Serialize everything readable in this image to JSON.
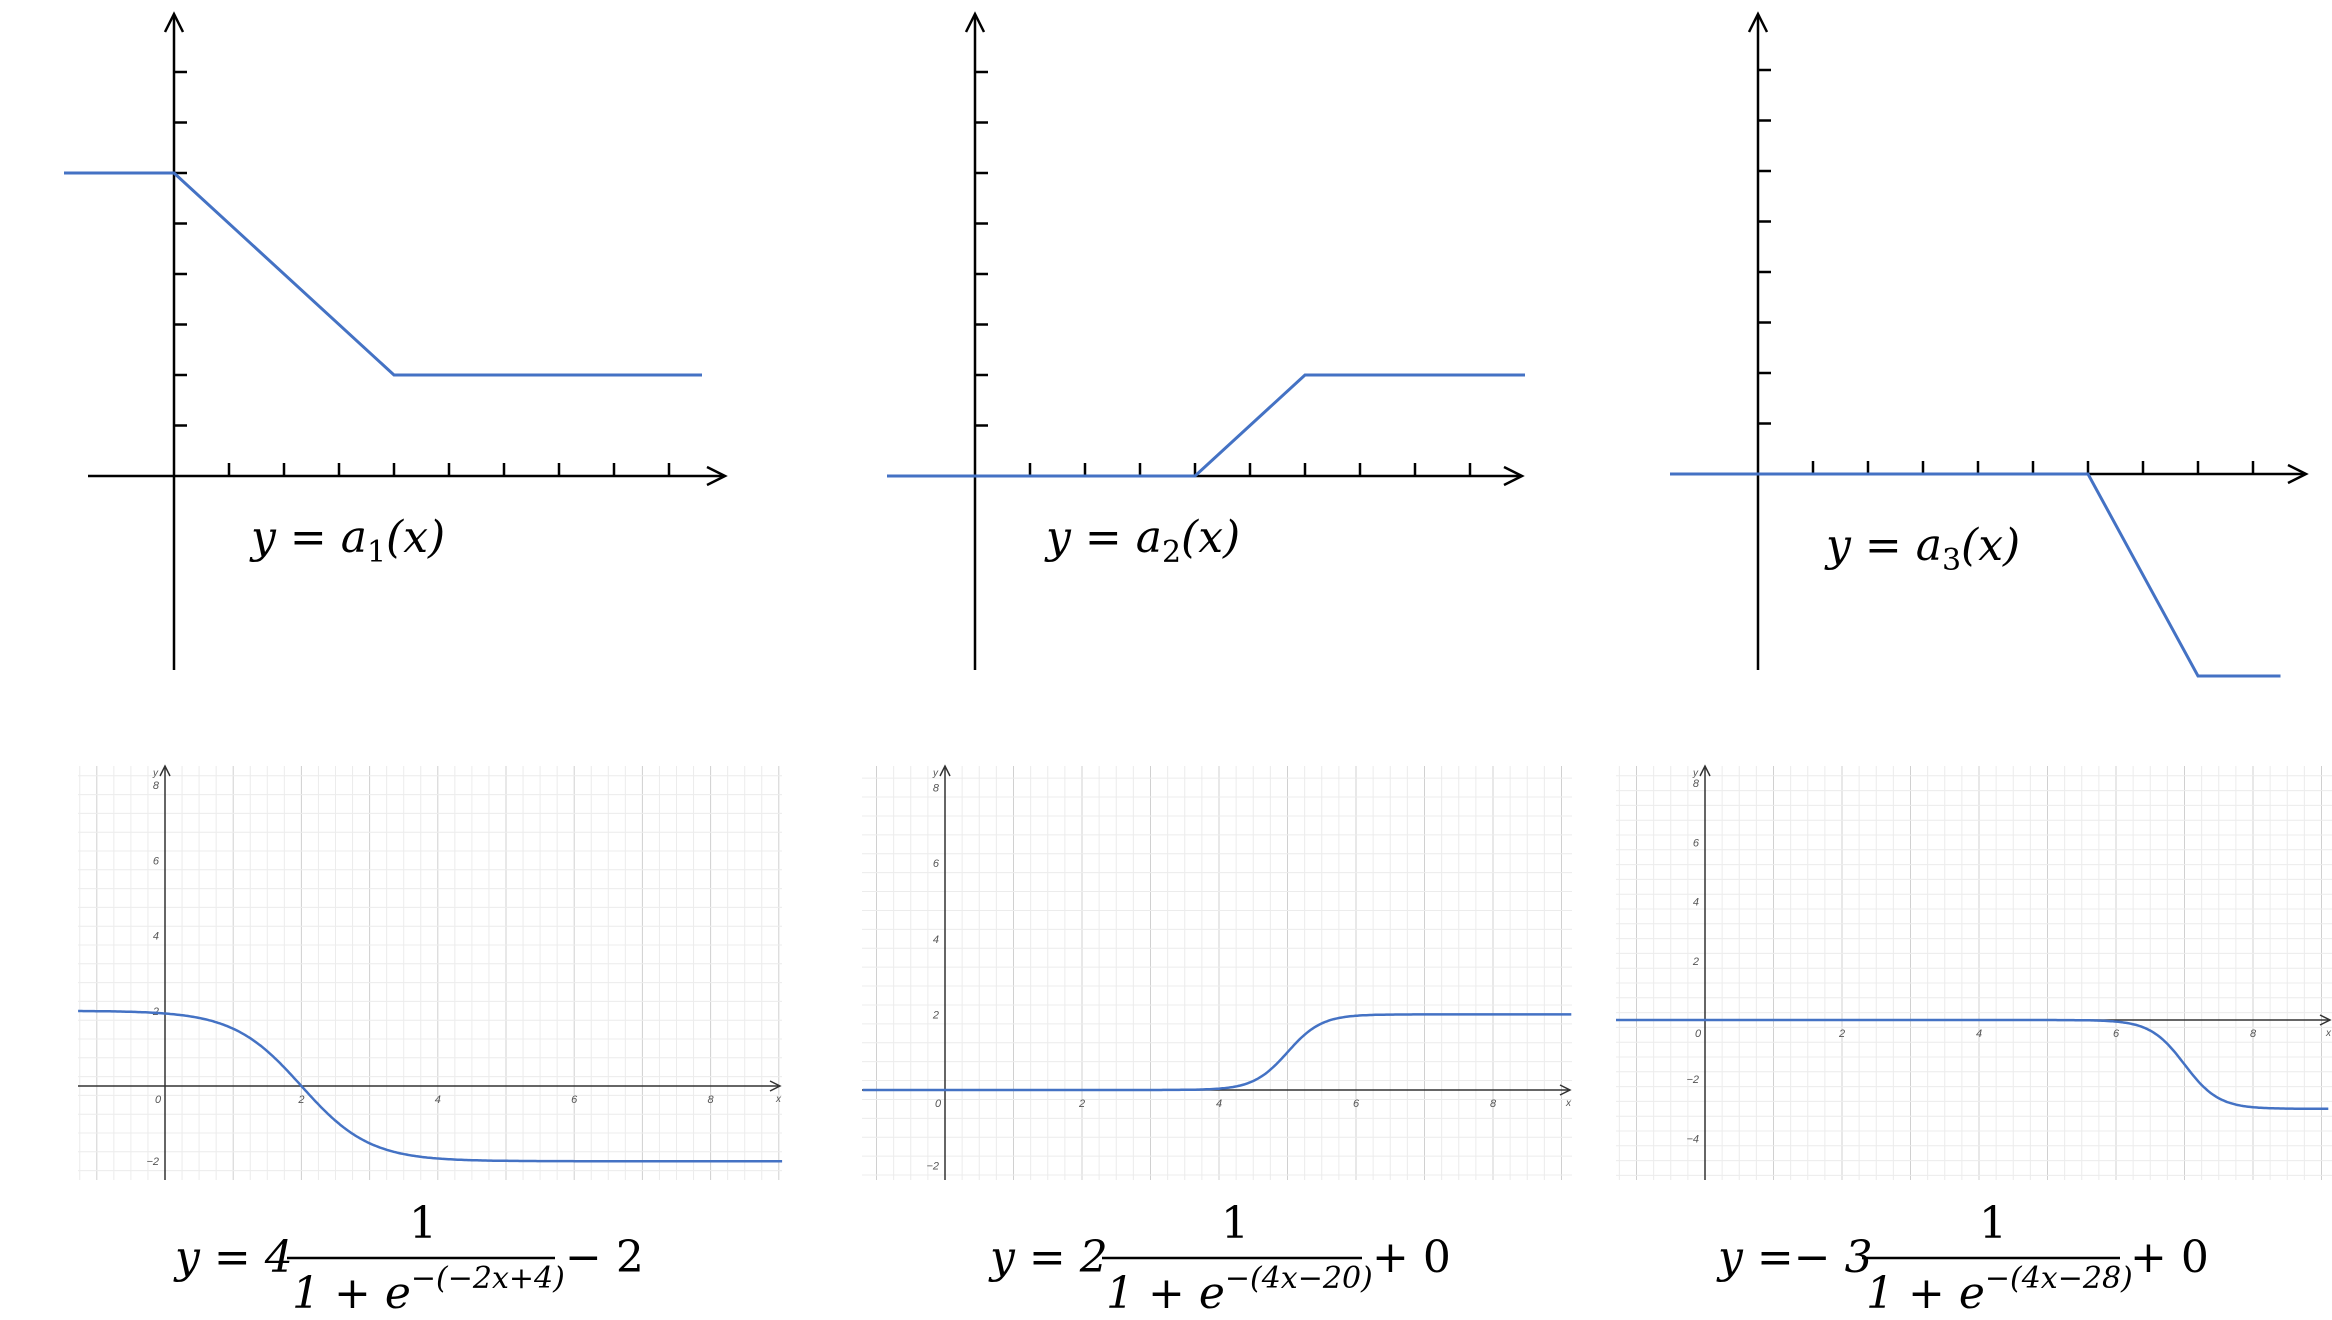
{
  "colors": {
    "curve": "#4472C4",
    "axis": "#000000",
    "grid_major": "#d0d0d0",
    "grid_minor": "#ececec",
    "tick_label": "#555555"
  },
  "chart_data": [
    {
      "type": "line",
      "title": "",
      "xlabel": "",
      "ylabel": "",
      "caption": {
        "lhs": "y = ",
        "a": "a",
        "sub": "1",
        "rhs": "(x)"
      },
      "xlim": [
        -1.6,
        10
      ],
      "ylim": [
        -1.4,
        9
      ],
      "x_ticks": [
        1,
        2,
        3,
        4,
        5,
        6,
        7,
        8,
        9
      ],
      "y_ticks": [
        1,
        2,
        3,
        4,
        5,
        6,
        7,
        8
      ],
      "series": [
        {
          "x": [
            -2,
            0,
            4,
            9.6
          ],
          "y": [
            6,
            6,
            2,
            2
          ]
        }
      ]
    },
    {
      "type": "line",
      "title": "",
      "xlabel": "",
      "ylabel": "",
      "caption": {
        "lhs": "y = ",
        "a": "a",
        "sub": "2",
        "rhs": "(x)"
      },
      "xlim": [
        -1.6,
        10
      ],
      "ylim": [
        -1.4,
        9
      ],
      "x_ticks": [
        1,
        2,
        3,
        4,
        5,
        6,
        7,
        8,
        9
      ],
      "y_ticks": [
        1,
        2,
        3,
        4,
        5,
        6,
        7,
        8
      ],
      "series": [
        {
          "x": [
            -1.6,
            4,
            6,
            10
          ],
          "y": [
            0,
            0,
            2,
            2
          ]
        }
      ]
    },
    {
      "type": "line",
      "title": "",
      "xlabel": "",
      "ylabel": "",
      "caption": {
        "lhs": "y = ",
        "a": "a",
        "sub": "3",
        "rhs": "(x)"
      },
      "xlim": [
        -1.6,
        10
      ],
      "ylim": [
        -4.2,
        9
      ],
      "x_ticks": [
        1,
        2,
        3,
        4,
        5,
        6,
        7,
        8,
        9
      ],
      "y_ticks": [
        1,
        2,
        3,
        4,
        5,
        6,
        7,
        8
      ],
      "series": [
        {
          "x": [
            -1.6,
            6,
            8,
            9.5
          ],
          "y": [
            0,
            0,
            -4,
            -4
          ]
        }
      ]
    },
    {
      "type": "line",
      "title": "",
      "xlabel": "x",
      "ylabel": "y",
      "formula": {
        "prefix": "y = 4",
        "num": "1",
        "den": "1 + e",
        "exp": "−(−2x+4)",
        "suffix": "− 2"
      },
      "xlim": [
        -1.3,
        9.1
      ],
      "ylim": [
        -2.3,
        8.5
      ],
      "x_tick_labels": [
        "0",
        "2",
        "4",
        "6",
        "8"
      ],
      "y_tick_labels": [
        "−2",
        "2",
        "4",
        "6",
        "8"
      ],
      "sigmoid": {
        "A": 4,
        "k": -2,
        "b": 4,
        "c": -2
      }
    },
    {
      "type": "line",
      "title": "",
      "xlabel": "x",
      "ylabel": "y",
      "formula": {
        "prefix": "y = 2",
        "num": "1",
        "den": "1 + e",
        "exp": "−(4x−20)",
        "suffix": "+ 0"
      },
      "xlim": [
        -1.2,
        9.3
      ],
      "ylim": [
        -2.3,
        8.5
      ],
      "x_tick_labels": [
        "0",
        "2",
        "4",
        "6",
        "8"
      ],
      "y_tick_labels": [
        "−2",
        "2",
        "4",
        "6",
        "8"
      ],
      "sigmoid": {
        "A": 2,
        "k": 4,
        "b": -20,
        "c": 0
      }
    },
    {
      "type": "line",
      "title": "",
      "xlabel": "x",
      "ylabel": "y",
      "formula": {
        "prefix": "y =− 3",
        "num": "1",
        "den": "1 + e",
        "exp": "−(4x−28)",
        "suffix": "+ 0"
      },
      "xlim": [
        -1.3,
        9.1
      ],
      "ylim": [
        -5.3,
        8.5
      ],
      "x_tick_labels": [
        "0",
        "2",
        "4",
        "6",
        "8"
      ],
      "y_tick_labels": [
        "−4",
        "−2",
        "2",
        "4",
        "6",
        "8"
      ],
      "sigmoid": {
        "A": -3,
        "k": 4,
        "b": -28,
        "c": 0
      }
    }
  ]
}
